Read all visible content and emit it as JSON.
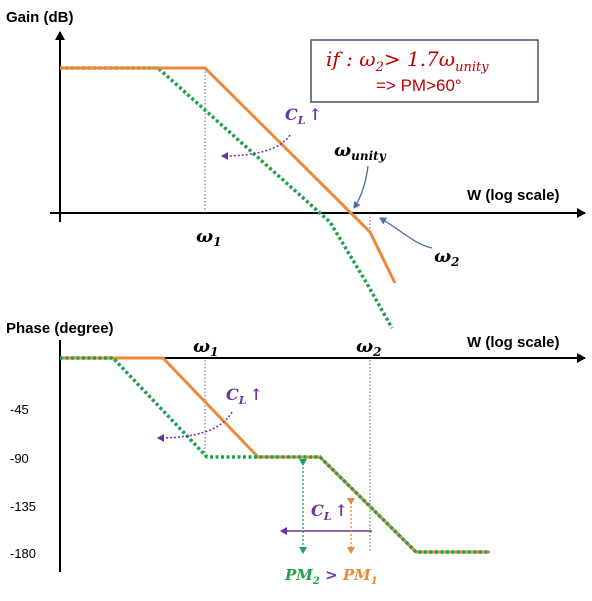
{
  "gain_plot": {
    "y_axis_label": "Gain (dB)",
    "x_axis_label": "W (log scale)",
    "omega1_label": "ω",
    "omega1_sub": "1",
    "omega2_label": "ω",
    "omega2_sub": "2",
    "omega_unity_label": "ω",
    "omega_unity_sub": "unity",
    "cl_label": "C",
    "cl_sub": "L",
    "cl_arrow": "↑",
    "condition_box": {
      "line1_if": "if",
      "line1_colon": " : ω",
      "line1_sub2": "2",
      "line1_mid": "> 1.7ω",
      "line1_sub_unity": "unity",
      "line2": "=> PM>60°"
    }
  },
  "phase_plot": {
    "y_axis_label": "Phase (degree)",
    "x_axis_label": "W (log scale)",
    "omega1_label": "ω",
    "omega1_sub": "1",
    "omega2_label": "ω",
    "omega2_sub": "2",
    "tick_labels": [
      "-45",
      "-90",
      "-135",
      "-180"
    ],
    "cl_label_upper": "C",
    "cl_sub_upper": "L",
    "cl_arrow_upper": "↑",
    "cl_label_lower": "C",
    "cl_sub_lower": "L",
    "cl_arrow_lower": "↑",
    "pm2_label": "PM",
    "pm2_sub": "2",
    "pm_compare": " > ",
    "pm1_label": "PM",
    "pm1_sub": "1"
  },
  "colors": {
    "orange_curve": "#E98A3B",
    "green_curve": "#1FA24A",
    "cl_purple": "#7030A0",
    "condition_red": "#C00000",
    "box_border": "#44546A",
    "annot_arrow": "#4A6FA5"
  }
}
